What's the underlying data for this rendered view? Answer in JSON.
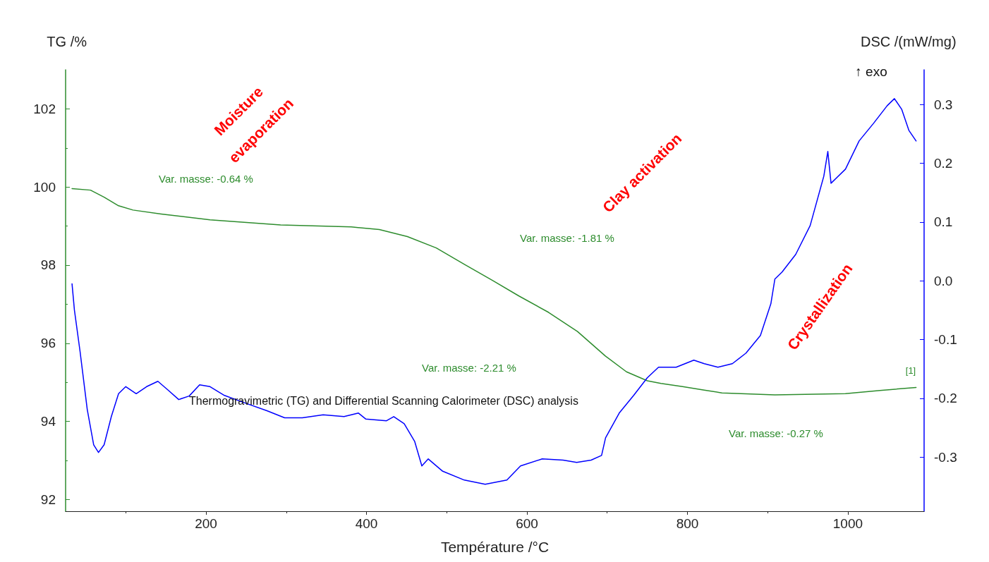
{
  "chart_data": {
    "type": "line",
    "title": "Thermogravimetric (TG) and Differential Scanning Calorimeter (DSC) analysis",
    "xlabel": "Température /°C",
    "ylabel": "TG /%",
    "y2label": "DSC /(mW/mg)",
    "xlim": [
      25,
      1095
    ],
    "xticks": [
      200,
      400,
      600,
      800,
      1000
    ],
    "ylim": [
      91.7,
      103
    ],
    "yticks": [
      92,
      94,
      96,
      98,
      100,
      102
    ],
    "y2lim": [
      -0.392,
      0.359
    ],
    "y2ticks": [
      {
        "value": -0.3,
        "label": "-0.3"
      },
      {
        "value": -0.2,
        "label": "-0.2"
      },
      {
        "value": -0.1,
        "label": "-0.1"
      },
      {
        "value": 0,
        "label": "0.0"
      },
      {
        "value": 0.1,
        "label": "0.1"
      },
      {
        "value": 0.2,
        "label": "0.2"
      },
      {
        "value": 0.3,
        "label": "0.3"
      }
    ],
    "grid": false,
    "series": [
      {
        "color": "#2d8c2d",
        "x": [
          33,
          56,
          73,
          91,
          109,
          144,
          205,
          293,
          381,
          416,
          451,
          487,
          522,
          557,
          590,
          627,
          663,
          698,
          724,
          750,
          767,
          794,
          821,
          843,
          909,
          997,
          1040,
          1085
        ],
        "values": [
          99.96,
          99.92,
          99.74,
          99.52,
          99.41,
          99.31,
          99.16,
          99.03,
          98.98,
          98.91,
          98.73,
          98.44,
          98.02,
          97.61,
          97.21,
          96.79,
          96.3,
          95.67,
          95.27,
          95.04,
          94.97,
          94.89,
          94.8,
          94.73,
          94.68,
          94.71,
          94.79,
          94.87
        ]
      },
      {
        "color": "#0000ff",
        "axis": "y2",
        "x": [
          33,
          36,
          43,
          52,
          60,
          66,
          73,
          82,
          91,
          100,
          113,
          126,
          140,
          152,
          166,
          179,
          192,
          205,
          223,
          249,
          276,
          298,
          320,
          346,
          372,
          390,
          399,
          425,
          434,
          447,
          460,
          469,
          477,
          495,
          522,
          548,
          575,
          592,
          619,
          645,
          662,
          680,
          693,
          698,
          715,
          733,
          750,
          764,
          786,
          808,
          821,
          838,
          856,
          873,
          891,
          904,
          909,
          918,
          935,
          953,
          970,
          975,
          979,
          997,
          1014,
          1032,
          1049,
          1058,
          1067,
          1076,
          1085
        ],
        "values": [
          -0.005,
          -0.05,
          -0.12,
          -0.219,
          -0.279,
          -0.292,
          -0.279,
          -0.231,
          -0.192,
          -0.18,
          -0.192,
          -0.18,
          -0.171,
          -0.185,
          -0.202,
          -0.196,
          -0.177,
          -0.18,
          -0.195,
          -0.208,
          -0.221,
          -0.233,
          -0.233,
          -0.228,
          -0.231,
          -0.225,
          -0.235,
          -0.238,
          -0.231,
          -0.243,
          -0.273,
          -0.315,
          -0.303,
          -0.324,
          -0.339,
          -0.346,
          -0.339,
          -0.315,
          -0.303,
          -0.305,
          -0.309,
          -0.305,
          -0.297,
          -0.267,
          -0.225,
          -0.195,
          -0.165,
          -0.147,
          -0.147,
          -0.135,
          -0.141,
          -0.147,
          -0.141,
          -0.123,
          -0.093,
          -0.039,
          0.003,
          0.015,
          0.045,
          0.094,
          0.178,
          0.22,
          0.166,
          0.19,
          0.238,
          0.268,
          0.298,
          0.31,
          0.292,
          0.256,
          0.238
        ]
      }
    ],
    "annotations": [
      "Var. masse: -0.64 %",
      "Var. masse: -1.81 %",
      "Var. masse: -2.21 %",
      "Var. masse: -0.27 %",
      "Moisture evaporation",
      "Clay activation",
      "Crystallization",
      "↑ exo",
      "[1]"
    ]
  }
}
